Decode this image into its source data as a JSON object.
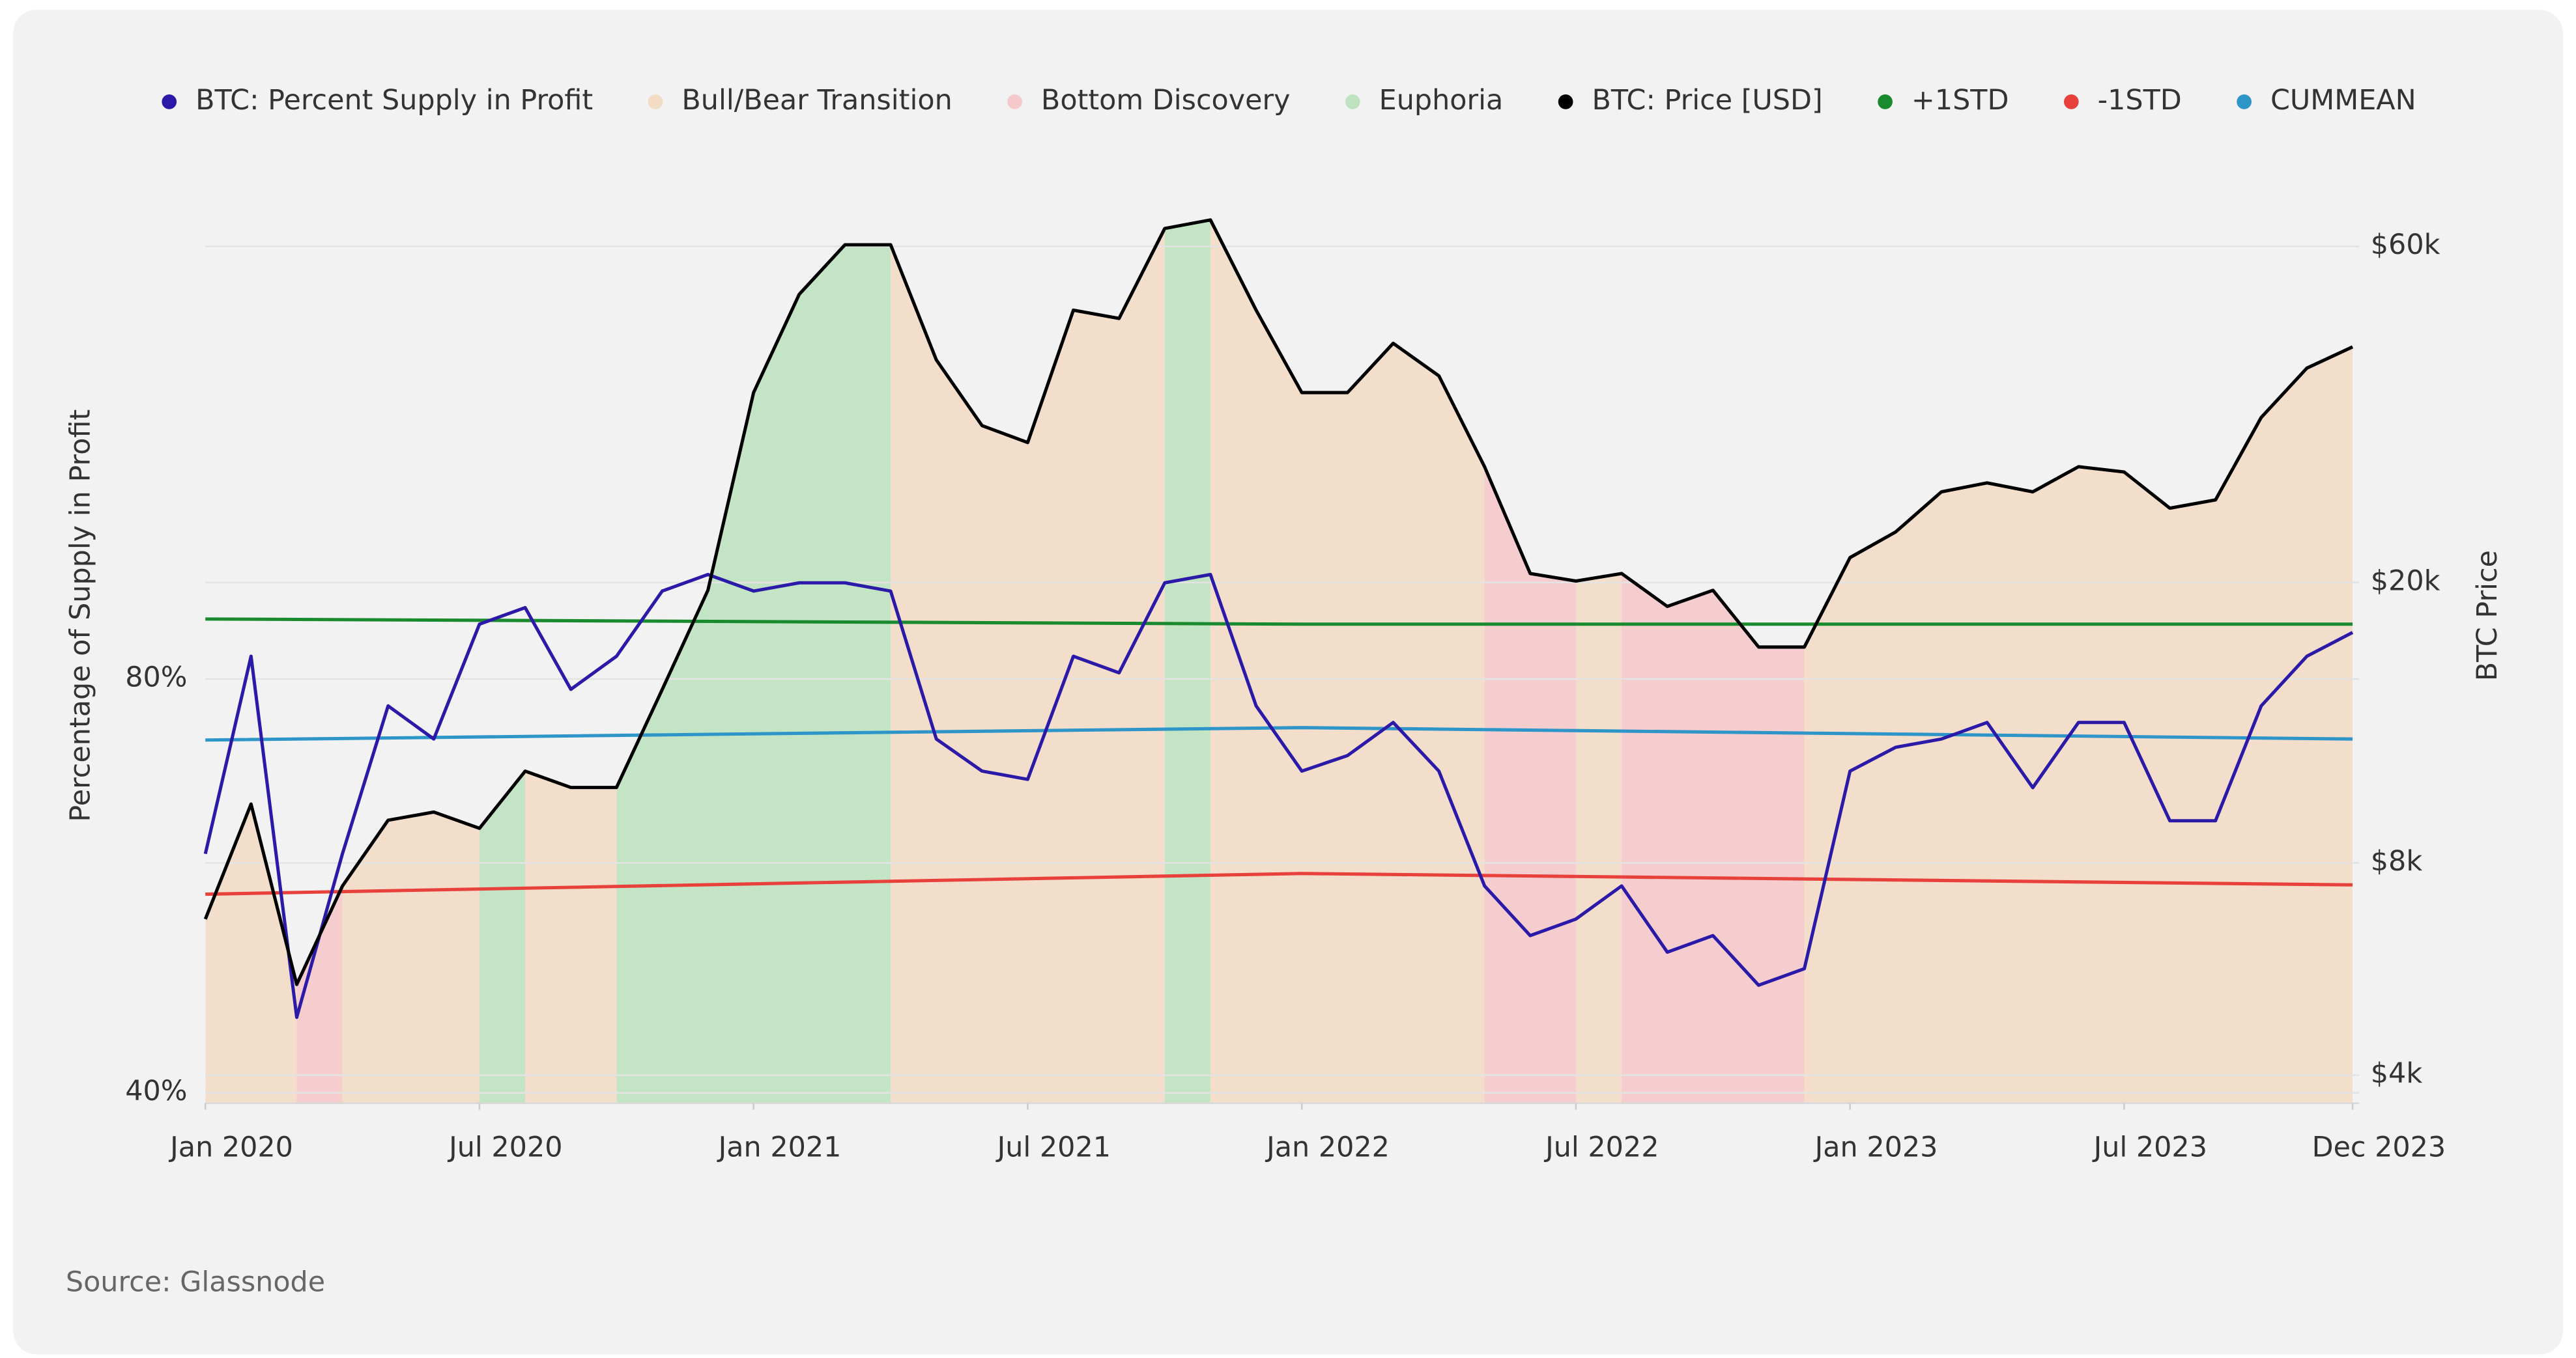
{
  "chart_data": {
    "type": "line",
    "y_label": "Percentage of Supply in Profit",
    "y2_label": "BTC Price",
    "source": "Source: Glassnode",
    "x": [
      "2020-01",
      "2020-02",
      "2020-03",
      "2020-04",
      "2020-05",
      "2020-06",
      "2020-07",
      "2020-08",
      "2020-09",
      "2020-10",
      "2020-11",
      "2020-12",
      "2021-01",
      "2021-02",
      "2021-03",
      "2021-04",
      "2021-05",
      "2021-06",
      "2021-07",
      "2021-08",
      "2021-09",
      "2021-10",
      "2021-11",
      "2021-12",
      "2022-01",
      "2022-02",
      "2022-03",
      "2022-04",
      "2022-05",
      "2022-06",
      "2022-07",
      "2022-08",
      "2022-09",
      "2022-10",
      "2022-11",
      "2022-12",
      "2023-01",
      "2023-02",
      "2023-03",
      "2023-04",
      "2023-05",
      "2023-06",
      "2023-07",
      "2023-08",
      "2023-09",
      "2023-10",
      "2023-11",
      "2023-12"
    ],
    "xlim": [
      "2020-01",
      "2023-12"
    ],
    "xticks": [
      {
        "value": "2020-01",
        "label": "Jan 2020"
      },
      {
        "value": "2020-07",
        "label": "Jul 2020"
      },
      {
        "value": "2021-01",
        "label": "Jan 2021"
      },
      {
        "value": "2021-07",
        "label": "Jul 2021"
      },
      {
        "value": "2022-01",
        "label": "Jan 2022"
      },
      {
        "value": "2022-07",
        "label": "Jul 2022"
      },
      {
        "value": "2023-01",
        "label": "Jan 2023"
      },
      {
        "value": "2023-07",
        "label": "Jul 2023"
      },
      {
        "value": "2023-12",
        "label": "Dec 2023"
      }
    ],
    "ylim": [
      39,
      125
    ],
    "yticks": [
      {
        "value": 40,
        "label": "40%"
      },
      {
        "value": 80,
        "label": "80%"
      }
    ],
    "y2lim": [
      3650,
      66800
    ],
    "y2log": true,
    "y2ticks": [
      {
        "value": 4000,
        "label": "$4k"
      },
      {
        "value": 8000,
        "label": "$8k"
      },
      {
        "value": 20000,
        "label": "$20k"
      },
      {
        "value": 60000,
        "label": "$60k"
      }
    ],
    "grid": true,
    "series": [
      {
        "name": "BTC: Percent Supply in Profit",
        "color": "#2b1aa8",
        "values": [
          63.1,
          82.2,
          47.3,
          63.1,
          77.4,
          74.2,
          85.3,
          86.9,
          79.0,
          82.2,
          88.5,
          90.1,
          88.5,
          89.3,
          89.3,
          88.5,
          74.2,
          71.1,
          70.3,
          82.2,
          80.6,
          89.3,
          90.1,
          77.4,
          71.1,
          72.6,
          75.8,
          71.1,
          60.0,
          55.2,
          56.8,
          60.0,
          53.6,
          55.2,
          50.4,
          52.0,
          71.1,
          73.4,
          74.2,
          75.8,
          69.5,
          75.8,
          75.8,
          66.3,
          66.3,
          77.4,
          82.2,
          84.5
        ]
      },
      {
        "name": "BTC: Price [USD]",
        "color": "#000000",
        "axis": "y2",
        "values": [
          6660,
          9700,
          5380,
          7420,
          9200,
          9450,
          8960,
          10800,
          10240,
          10240,
          14100,
          19500,
          37200,
          51300,
          60300,
          60300,
          41400,
          33400,
          31600,
          48700,
          47400,
          63600,
          65400,
          48700,
          37200,
          37200,
          43700,
          39300,
          29200,
          20600,
          20100,
          20600,
          18500,
          19500,
          16200,
          16200,
          21700,
          23600,
          26900,
          27700,
          26900,
          29200,
          28700,
          25500,
          26200,
          34300,
          40300,
          43200
        ]
      },
      {
        "name": "+1STD",
        "color": "#1a8a2e",
        "x": [
          "2020-01",
          "2022-01",
          "2023-12"
        ],
        "values": [
          85.8,
          85.3,
          85.3
        ]
      },
      {
        "name": "-1STD",
        "color": "#e8413c",
        "x": [
          "2020-01",
          "2022-01",
          "2023-12"
        ],
        "values": [
          59.2,
          61.2,
          60.1
        ]
      },
      {
        "name": "CUMMEAN",
        "color": "#2e95c8",
        "x": [
          "2020-01",
          "2022-01",
          "2023-12"
        ],
        "values": [
          74.1,
          75.3,
          74.2
        ]
      }
    ],
    "regimes": [
      {
        "name": "Bull/Bear Transition",
        "color": "#f3dcc6"
      },
      {
        "name": "Bottom Discovery",
        "color": "#f5c9cb"
      },
      {
        "name": "Euphoria",
        "color": "#bfe3c0"
      }
    ],
    "bands": [
      {
        "regime": "Bull/Bear Transition",
        "from": "2020-01",
        "to": "2020-03"
      },
      {
        "regime": "Bottom Discovery",
        "from": "2020-03",
        "to": "2020-04"
      },
      {
        "regime": "Bull/Bear Transition",
        "from": "2020-04",
        "to": "2020-07"
      },
      {
        "regime": "Euphoria",
        "from": "2020-07",
        "to": "2020-08"
      },
      {
        "regime": "Bull/Bear Transition",
        "from": "2020-08",
        "to": "2020-10"
      },
      {
        "regime": "Euphoria",
        "from": "2020-10",
        "to": "2021-04"
      },
      {
        "regime": "Bull/Bear Transition",
        "from": "2021-04",
        "to": "2021-10"
      },
      {
        "regime": "Euphoria",
        "from": "2021-10",
        "to": "2021-11"
      },
      {
        "regime": "Bull/Bear Transition",
        "from": "2021-11",
        "to": "2022-05"
      },
      {
        "regime": "Bottom Discovery",
        "from": "2022-05",
        "to": "2022-07"
      },
      {
        "regime": "Bull/Bear Transition",
        "from": "2022-07",
        "to": "2022-08"
      },
      {
        "regime": "Bottom Discovery",
        "from": "2022-08",
        "to": "2022-12"
      },
      {
        "regime": "Bull/Bear Transition",
        "from": "2022-12",
        "to": "2023-12"
      }
    ]
  }
}
